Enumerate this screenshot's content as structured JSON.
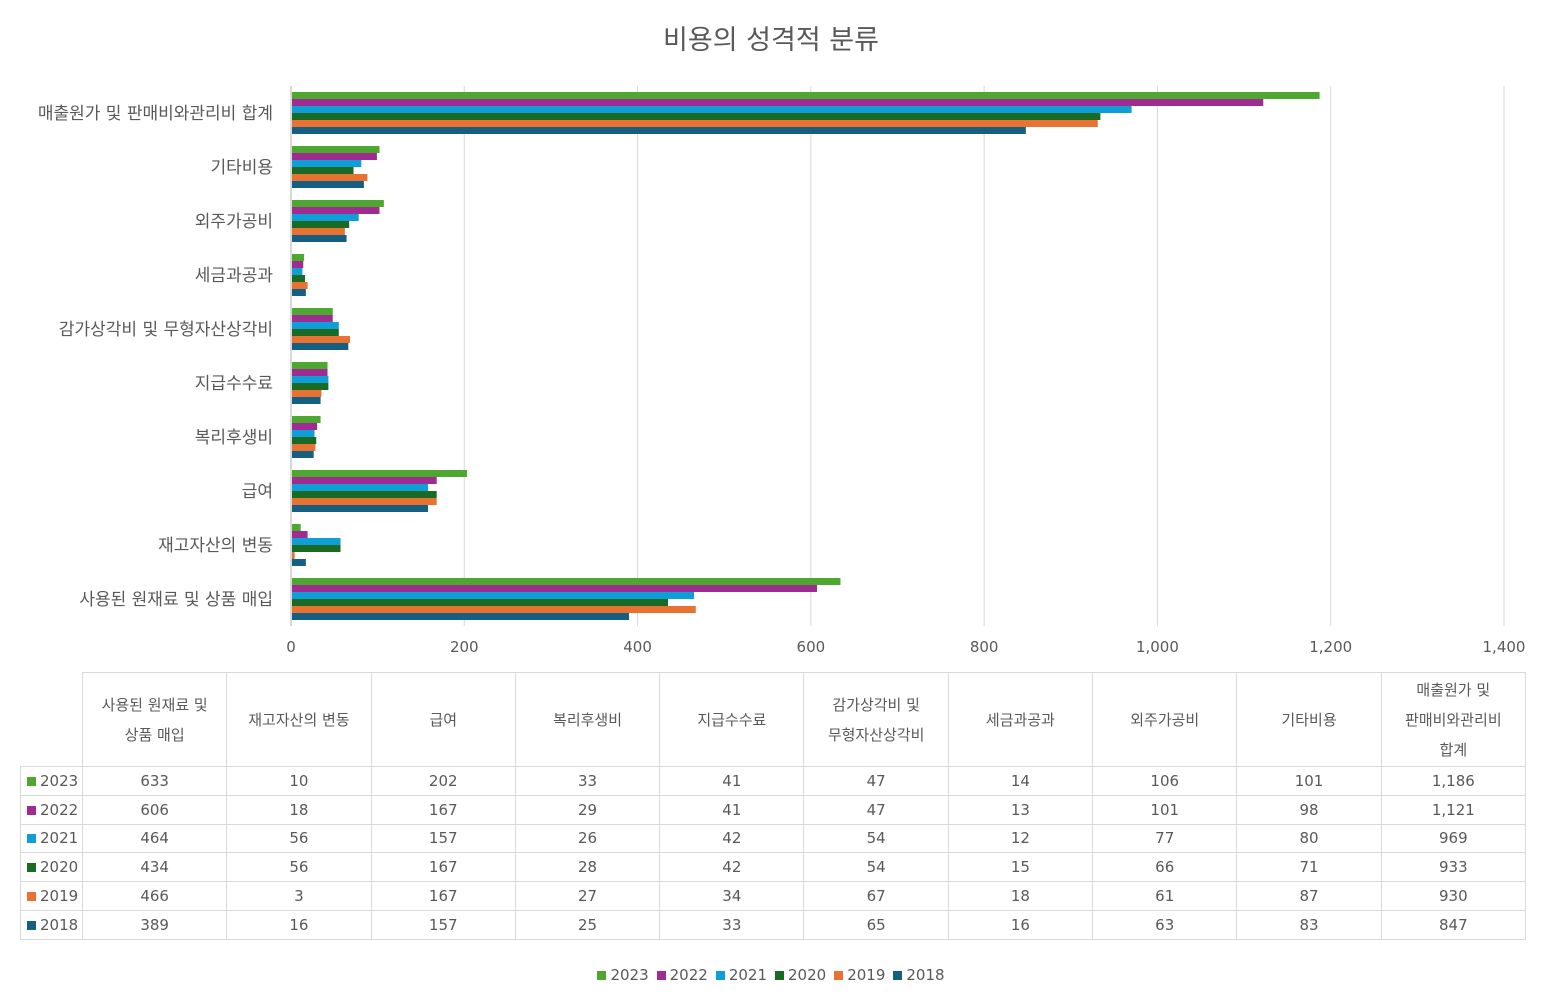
{
  "chart_data": {
    "type": "bar",
    "orientation": "horizontal",
    "title": "비용의 성격적 분류",
    "categories": [
      "사용된 원재료 및 상품 매입",
      "재고자산의 변동",
      "급여",
      "복리후생비",
      "지급수수료",
      "감가상각비 및 무형자산상각비",
      "세금과공과",
      "외주가공비",
      "기타비용",
      "매출원가 및 판매비와관리비 합계"
    ],
    "table_headers": [
      [
        "사용된 원재료 및",
        "상품 매입"
      ],
      [
        "재고자산의 변동"
      ],
      [
        "급여"
      ],
      [
        "복리후생비"
      ],
      [
        "지급수수료"
      ],
      [
        "감가상각비 및",
        "무형자산상각비"
      ],
      [
        "세금과공과"
      ],
      [
        "외주가공비"
      ],
      [
        "기타비용"
      ],
      [
        "매출원가 및",
        "판매비와관리비",
        "합계"
      ]
    ],
    "series": [
      {
        "name": "2023",
        "color": "#4ea72e",
        "values": [
          633,
          10,
          202,
          33,
          41,
          47,
          14,
          106,
          101,
          1186
        ],
        "labels": [
          "633",
          "10",
          "202",
          "33",
          "41",
          "47",
          "14",
          "106",
          "101",
          "1,186"
        ]
      },
      {
        "name": "2022",
        "color": "#a02b93",
        "values": [
          606,
          18,
          167,
          29,
          41,
          47,
          13,
          101,
          98,
          1121
        ],
        "labels": [
          "606",
          "18",
          "167",
          "29",
          "41",
          "47",
          "13",
          "101",
          "98",
          "1,121"
        ]
      },
      {
        "name": "2021",
        "color": "#0f9ed5",
        "values": [
          464,
          56,
          157,
          26,
          42,
          54,
          12,
          77,
          80,
          969
        ],
        "labels": [
          "464",
          "56",
          "157",
          "26",
          "42",
          "54",
          "12",
          "77",
          "80",
          "969"
        ]
      },
      {
        "name": "2020",
        "color": "#196b24",
        "values": [
          434,
          56,
          167,
          28,
          42,
          54,
          15,
          66,
          71,
          933
        ],
        "labels": [
          "434",
          "56",
          "167",
          "28",
          "42",
          "54",
          "15",
          "66",
          "71",
          "933"
        ]
      },
      {
        "name": "2019",
        "color": "#e97132",
        "values": [
          466,
          3,
          167,
          27,
          34,
          67,
          18,
          61,
          87,
          930
        ],
        "labels": [
          "466",
          "3",
          "167",
          "27",
          "34",
          "67",
          "18",
          "61",
          "87",
          "930"
        ]
      },
      {
        "name": "2018",
        "color": "#156082",
        "values": [
          389,
          16,
          157,
          25,
          33,
          65,
          16,
          63,
          83,
          847
        ],
        "labels": [
          "389",
          "16",
          "157",
          "25",
          "33",
          "65",
          "16",
          "63",
          "83",
          "847"
        ]
      }
    ],
    "xlim": [
      0,
      1400
    ],
    "xticks": [
      0,
      200,
      400,
      600,
      800,
      1000,
      1200,
      1400
    ],
    "xtick_labels": [
      "0",
      "200",
      "400",
      "600",
      "800",
      "1,000",
      "1,200",
      "1,400"
    ],
    "grid": true,
    "legend_position": "bottom",
    "data_table": true
  }
}
